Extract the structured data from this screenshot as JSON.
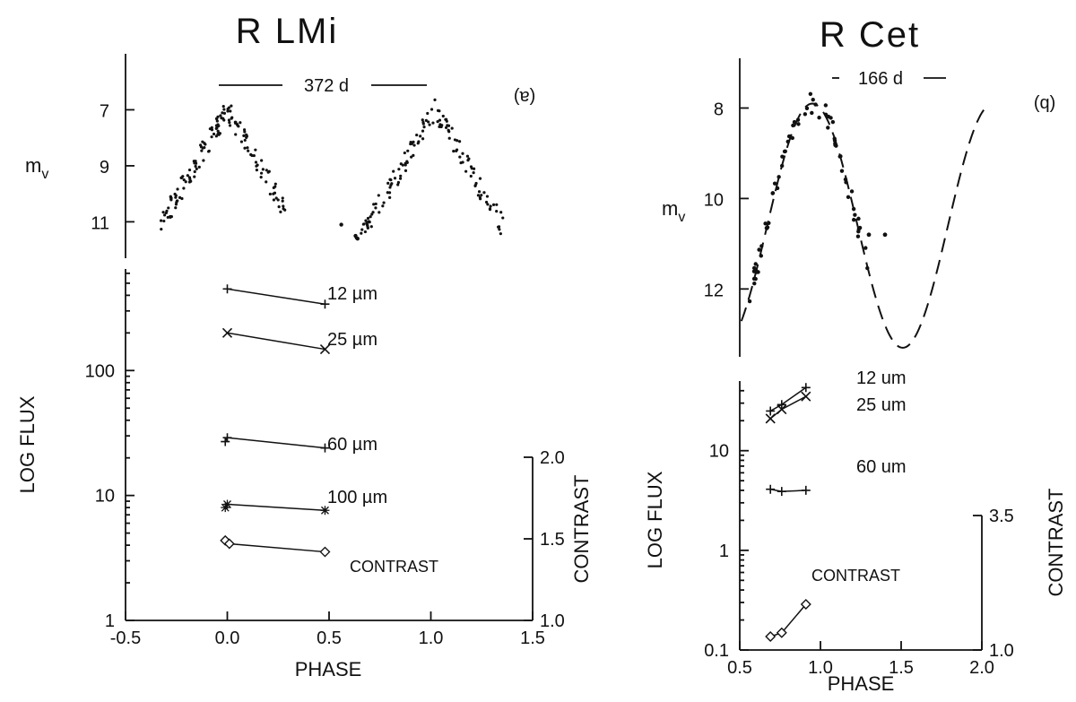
{
  "chart_data": [
    {
      "id": "rlmi",
      "type": "scatter",
      "title": "R LMi",
      "panel_label": "(a)",
      "period_label": "372 d",
      "light_curve": {
        "ylabel_main": "m",
        "ylabel_sub": "v",
        "y_ticks": [
          "7",
          "9",
          "11"
        ],
        "ylim": [
          5.0,
          12.3
        ],
        "points_segments": [
          {
            "x0": -0.33,
            "x1": 0.3,
            "peak": 0.0
          },
          {
            "x0": 0.62,
            "x1": 1.36,
            "peak": 1.02
          }
        ],
        "peak_mag": 7.0,
        "min_mag": 11.4
      },
      "flux": {
        "ylabel": "LOG FLUX",
        "xlabel": "PHASE",
        "x_ticks": [
          "-0.5",
          "0.0",
          "0.5",
          "1.0",
          "1.5"
        ],
        "xlim": [
          -0.5,
          1.5
        ],
        "y_ticks": [
          "1",
          "10",
          "100"
        ],
        "ylim_log": [
          1,
          650
        ],
        "right_axis_label": "CONTRAST",
        "right_ticks": [
          "1.0",
          "1.5",
          "2.0"
        ],
        "right_lim": [
          1.0,
          2.0
        ],
        "series": [
          {
            "name": "12 µm",
            "marker": "+",
            "x": [
              0.0,
              0.48
            ],
            "y": [
              450,
              340
            ]
          },
          {
            "name": "25 µm",
            "marker": "x",
            "x": [
              0.0,
              0.48
            ],
            "y": [
              200,
              148
            ]
          },
          {
            "name": "60 µm",
            "marker": "+",
            "x": [
              -0.01,
              0.0,
              0.48
            ],
            "y": [
              27,
              29,
              24
            ]
          },
          {
            "name": "100 µm",
            "marker": "star",
            "x": [
              -0.01,
              0.0,
              0.48
            ],
            "y": [
              8.0,
              8.5,
              7.6
            ]
          }
        ],
        "contrast": {
          "name": "CONTRAST",
          "marker": "diamond",
          "x": [
            -0.01,
            0.01,
            0.48
          ],
          "y": [
            1.49,
            1.47,
            1.42
          ]
        }
      }
    },
    {
      "id": "rcet",
      "type": "scatter",
      "title": "R Cet",
      "panel_label": "(b)",
      "period_label": "166 d",
      "light_curve": {
        "ylabel_main": "m",
        "ylabel_sub": "v",
        "y_ticks": [
          "8",
          "10",
          "12"
        ],
        "ylim": [
          6.9,
          13.5
        ],
        "model_curve": "dashed",
        "peak_mag": 7.9,
        "min_mag": 13.3
      },
      "flux": {
        "ylabel": "LOG FLUX",
        "xlabel": "PHASE",
        "x_ticks": [
          "0.5",
          "1.0",
          "1.5",
          "2.0"
        ],
        "xlim": [
          0.5,
          2.0
        ],
        "y_ticks": [
          "0.1",
          "1",
          "10"
        ],
        "ylim_log": [
          0.1,
          50
        ],
        "right_axis_label": "CONTRAST",
        "right_ticks": [
          "1.0",
          "3.5"
        ],
        "right_lim": [
          1.0,
          3.5
        ],
        "series": [
          {
            "name": "12 um",
            "marker": "+",
            "x": [
              0.69,
              0.76,
              0.91
            ],
            "y": [
              25,
              29,
              43
            ]
          },
          {
            "name": "25 um",
            "marker": "x",
            "x": [
              0.69,
              0.76,
              0.91
            ],
            "y": [
              21,
              26,
              35
            ]
          },
          {
            "name": "60 um",
            "marker": "+",
            "x": [
              0.69,
              0.76,
              0.91
            ],
            "y": [
              4.1,
              3.9,
              4.0
            ]
          }
        ],
        "contrast": {
          "name": "CONTRAST",
          "marker": "diamond",
          "x": [
            0.69,
            0.76,
            0.91
          ],
          "y": [
            1.25,
            1.32,
            1.85
          ]
        }
      }
    }
  ]
}
